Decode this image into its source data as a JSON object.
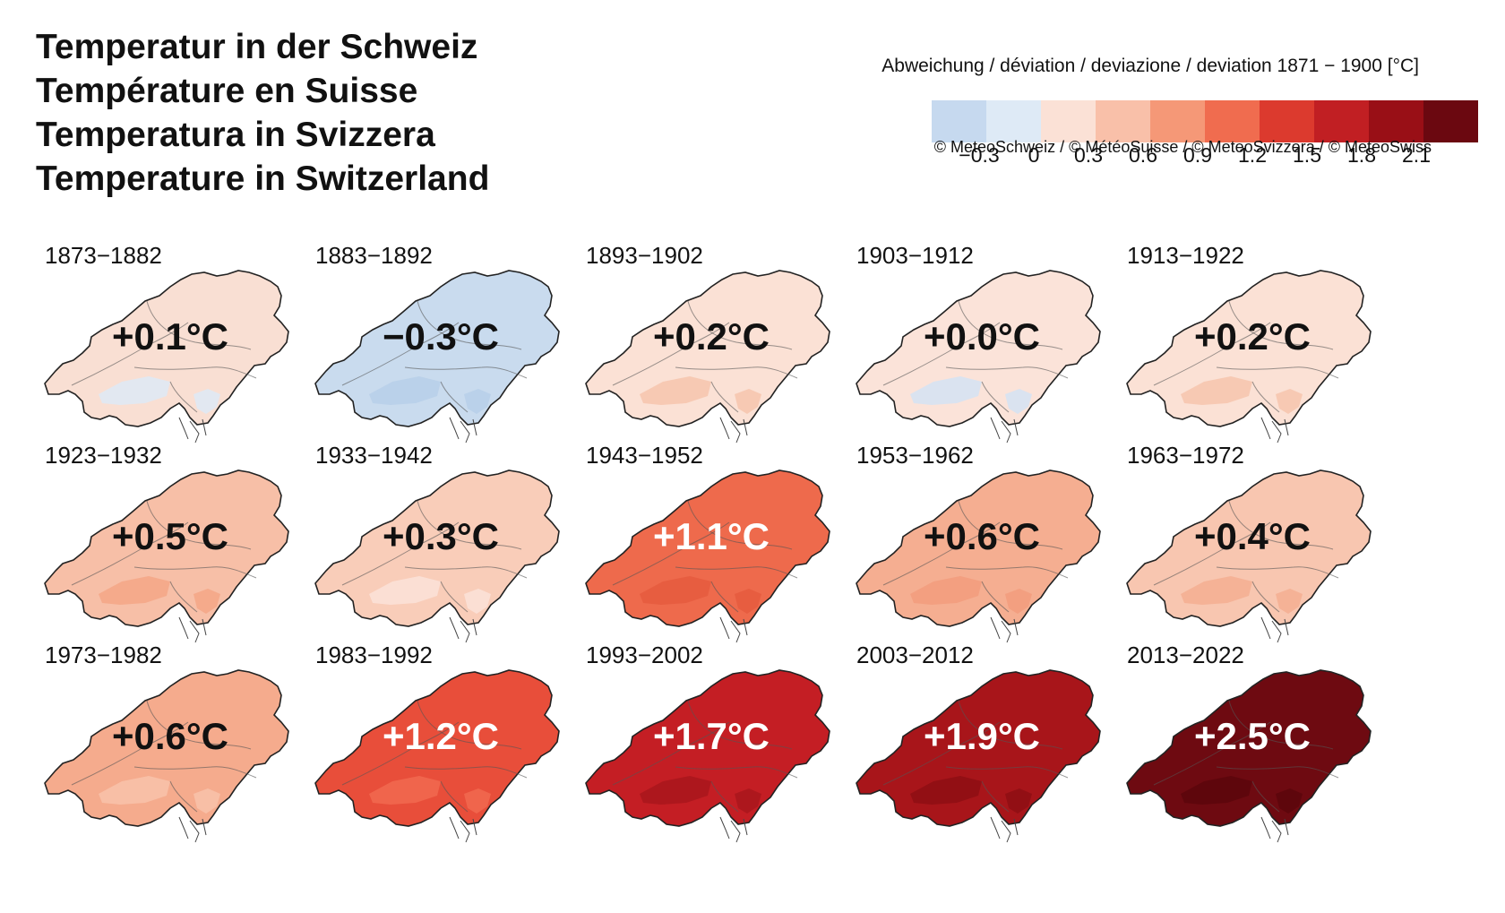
{
  "titles": [
    "Temperatur in der Schweiz",
    "Température en Suisse",
    "Temperatura in Svizzera",
    "Temperature in Switzerland"
  ],
  "legend": {
    "title": "Abweichung / déviation / deviazione / deviation 1871 − 1900 [°C]",
    "colors": [
      "#c6d9ef",
      "#deeaf6",
      "#fbe1d6",
      "#f9c0a9",
      "#f59877",
      "#f06c4f",
      "#dc3a2e",
      "#c11f23",
      "#990f16",
      "#6b0810"
    ],
    "ticks": [
      "−0.3",
      "0",
      "0.3",
      "0.6",
      "0.9",
      "1.2",
      "1.5",
      "1.8",
      "2.1"
    ]
  },
  "copyright": "© MeteoSchweiz / © MétéoSuisse / © MeteoSvizzera / © MeteoSwiss",
  "panels": [
    {
      "period": "1873−1882",
      "value": "+0.1°C",
      "fill": "#f9dfd3",
      "patch": "#deeaf6",
      "text_color": "#111111"
    },
    {
      "period": "1883−1892",
      "value": "−0.3°C",
      "fill": "#c9dbee",
      "patch": "#b7cfe9",
      "text_color": "#111111"
    },
    {
      "period": "1893−1902",
      "value": "+0.2°C",
      "fill": "#fbe1d5",
      "patch": "#f6c4ad",
      "text_color": "#111111"
    },
    {
      "period": "1903−1912",
      "value": "+0.0°C",
      "fill": "#fbe3d9",
      "patch": "#d4e3f3",
      "text_color": "#111111"
    },
    {
      "period": "1913−1922",
      "value": "+0.2°C",
      "fill": "#fbe1d5",
      "patch": "#f6c4ad",
      "text_color": "#111111"
    },
    {
      "period": "1923−1932",
      "value": "+0.5°C",
      "fill": "#f7bfa7",
      "patch": "#f4a686",
      "text_color": "#111111"
    },
    {
      "period": "1933−1942",
      "value": "+0.3°C",
      "fill": "#f9cdb9",
      "patch": "#fbe2d8",
      "text_color": "#111111"
    },
    {
      "period": "1943−1952",
      "value": "+1.1°C",
      "fill": "#ee6a4c",
      "patch": "#e55a3e",
      "text_color": "#ffffff"
    },
    {
      "period": "1953−1962",
      "value": "+0.6°C",
      "fill": "#f5ae91",
      "patch": "#f29c7c",
      "text_color": "#111111"
    },
    {
      "period": "1963−1972",
      "value": "+0.4°C",
      "fill": "#f8c6b0",
      "patch": "#f4ae92",
      "text_color": "#111111"
    },
    {
      "period": "1973−1982",
      "value": "+0.6°C",
      "fill": "#f5ab8d",
      "patch": "#f8c2aa",
      "text_color": "#111111"
    },
    {
      "period": "1983−1992",
      "value": "+1.2°C",
      "fill": "#e84e3a",
      "patch": "#f16a50",
      "text_color": "#ffffff"
    },
    {
      "period": "1993−2002",
      "value": "+1.7°C",
      "fill": "#c41e24",
      "patch": "#a9161c",
      "text_color": "#ffffff"
    },
    {
      "period": "2003−2012",
      "value": "+1.9°C",
      "fill": "#a8151a",
      "patch": "#8e0e14",
      "text_color": "#ffffff"
    },
    {
      "period": "2013−2022",
      "value": "+2.5°C",
      "fill": "#6e0a11",
      "patch": "#5c060c",
      "text_color": "#ffffff"
    }
  ]
}
